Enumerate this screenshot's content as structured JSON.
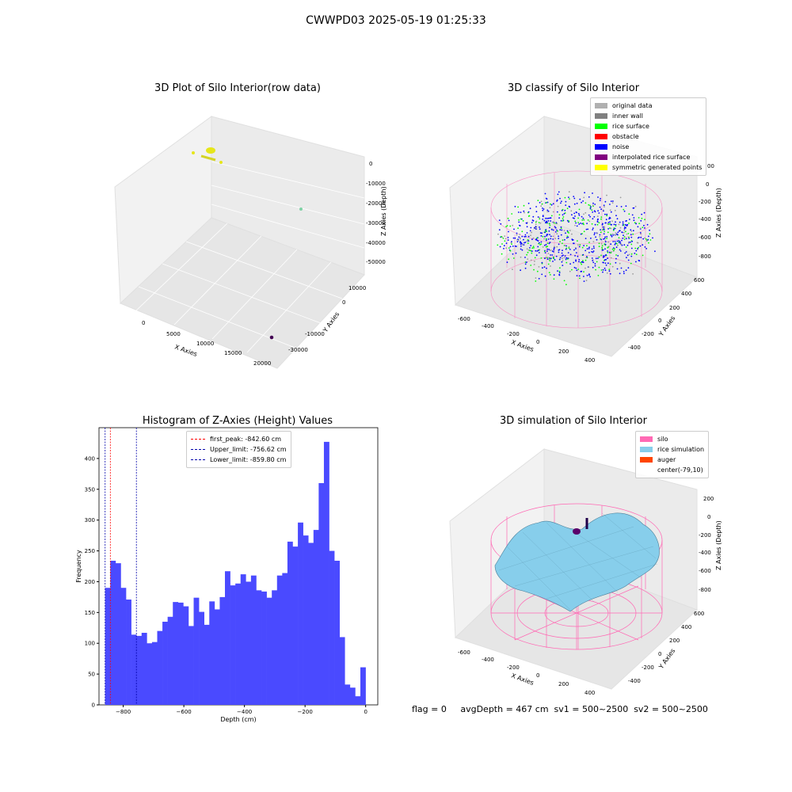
{
  "figure_title": "CWWPD03 2025-05-19 01:25:33",
  "status_line": "flag = 0     avgDepth = 467 cm  sv1 = 500~2500  sv2 = 500~2500",
  "colors": {
    "hist_bar": "#4a4aff",
    "peak_line": "#ff0000",
    "limit_line": "#0000aa",
    "silo": "#ff69b4",
    "rice": "#87ceeb",
    "noise": "#0000ff",
    "rice_surface": "#00ff00",
    "raw_points": "#e6e61a"
  },
  "chart_data": [
    {
      "type": "scatter",
      "title": "3D Plot of Silo Interior(row data)",
      "xlabel": "X Axies",
      "ylabel": "Y Axies",
      "zlabel": "Z Axies (Depth)",
      "x_ticks": [
        "0",
        "5000",
        "10000",
        "15000",
        "20000"
      ],
      "y_ticks": [
        "10000",
        "0",
        "-10000",
        "-20000",
        "-30000"
      ],
      "z_ticks": [
        "0",
        "-10000",
        "-20000",
        "-30000",
        "-40000",
        "-50000"
      ]
    },
    {
      "type": "scatter",
      "title": "3D classify of Silo Interior",
      "xlabel": "X Axies",
      "ylabel": "Y Axies",
      "zlabel": "Z Axies (Depth)",
      "x_ticks": [
        "-600",
        "-400",
        "-200",
        "0",
        "200",
        "400"
      ],
      "y_ticks": [
        "600",
        "400",
        "200",
        "0",
        "-200",
        "-400"
      ],
      "z_ticks": [
        "0",
        "-200",
        "-400",
        "-600",
        "-800"
      ],
      "z_tick_top_partial": "00",
      "legend": [
        {
          "label": "original data",
          "color": "#b0b0b0"
        },
        {
          "label": "inner wall",
          "color": "#808080"
        },
        {
          "label": "rice surface",
          "color": "#00ff00"
        },
        {
          "label": "obstacle",
          "color": "#ff0000"
        },
        {
          "label": "noise",
          "color": "#0000ff"
        },
        {
          "label": "interpolated rice surface",
          "color": "#800080"
        },
        {
          "label": "symmetric generated points",
          "color": "#ffff00"
        }
      ]
    },
    {
      "type": "bar",
      "title": "Histogram of Z-Axies (Height) Values",
      "xlabel": "Depth (cm)",
      "ylabel": "Frequency",
      "xlim": [
        -880,
        40
      ],
      "ylim": [
        0,
        450
      ],
      "x_ticks": [
        -800,
        -600,
        -400,
        -200,
        0
      ],
      "x_tick_labels": [
        "−800",
        "−600",
        "−400",
        "−200",
        "0"
      ],
      "y_ticks": [
        0,
        50,
        100,
        150,
        200,
        250,
        300,
        350,
        400
      ],
      "bin_start": -859.8,
      "bin_width": 17.19,
      "values": [
        190,
        234,
        230,
        190,
        171,
        114,
        112,
        117,
        100,
        102,
        120,
        135,
        143,
        167,
        166,
        160,
        128,
        174,
        151,
        130,
        168,
        155,
        175,
        217,
        194,
        197,
        212,
        200,
        210,
        186,
        184,
        174,
        186,
        210,
        214,
        265,
        257,
        296,
        275,
        263,
        284,
        360,
        427,
        250,
        234,
        110,
        33,
        28,
        14,
        61
      ],
      "vlines": [
        {
          "label": "first_peak: -842.60 cm",
          "x": -842.6,
          "color": "#ff0000"
        },
        {
          "label": "Upper_limit: -756.62 cm",
          "x": -756.62,
          "color": "#0000aa"
        },
        {
          "label": "Lower_limit: -859.80 cm",
          "x": -859.8,
          "color": "#0000aa"
        }
      ]
    },
    {
      "type": "area",
      "title": "3D simulation of Silo Interior",
      "xlabel": "X Axies",
      "ylabel": "Y Axies",
      "zlabel": "Z Axies (Depth)",
      "x_ticks": [
        "-600",
        "-400",
        "-200",
        "0",
        "200",
        "400"
      ],
      "y_ticks": [
        "600",
        "400",
        "200",
        "0",
        "-200",
        "-400"
      ],
      "z_ticks": [
        "200",
        "0",
        "-200",
        "-400",
        "-600",
        "-800"
      ],
      "legend": [
        {
          "label": "silo",
          "color": "#ff69b4"
        },
        {
          "label": "rice simulation",
          "color": "#87ceeb"
        },
        {
          "label": "auger",
          "color": "#ff4500"
        },
        {
          "label": "center(-79,10)",
          "color": ""
        }
      ]
    }
  ]
}
